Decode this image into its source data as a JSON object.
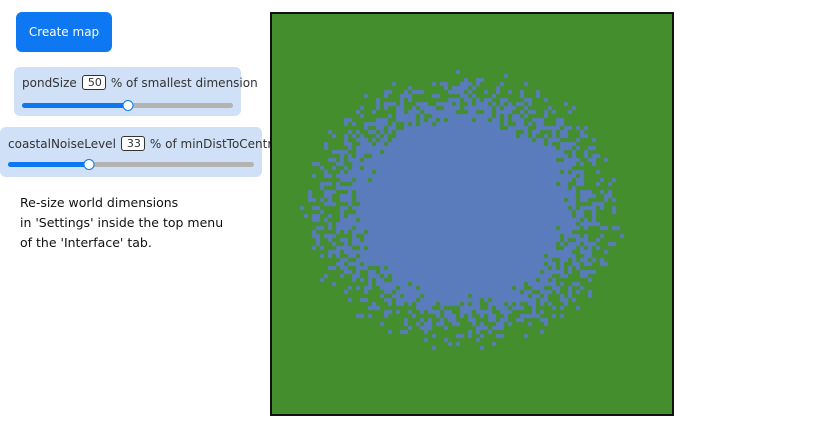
{
  "create_button": {
    "label": "Create map"
  },
  "pond_size": {
    "label": "pondSize",
    "value": "50",
    "suffix": "% of smallest dimension",
    "fraction": 0.5
  },
  "coastal_noise": {
    "label": "coastalNoiseLevel",
    "value": "33",
    "suffix": "% of minDistToCentre",
    "fraction": 0.33
  },
  "info": {
    "line1": "Re-size world dimensions",
    "line2": "in 'Settings' inside the top menu",
    "line3": "of the 'Interface' tab."
  },
  "map": {
    "land_color": "#448e2e",
    "water_color": "#5a7cbc"
  }
}
